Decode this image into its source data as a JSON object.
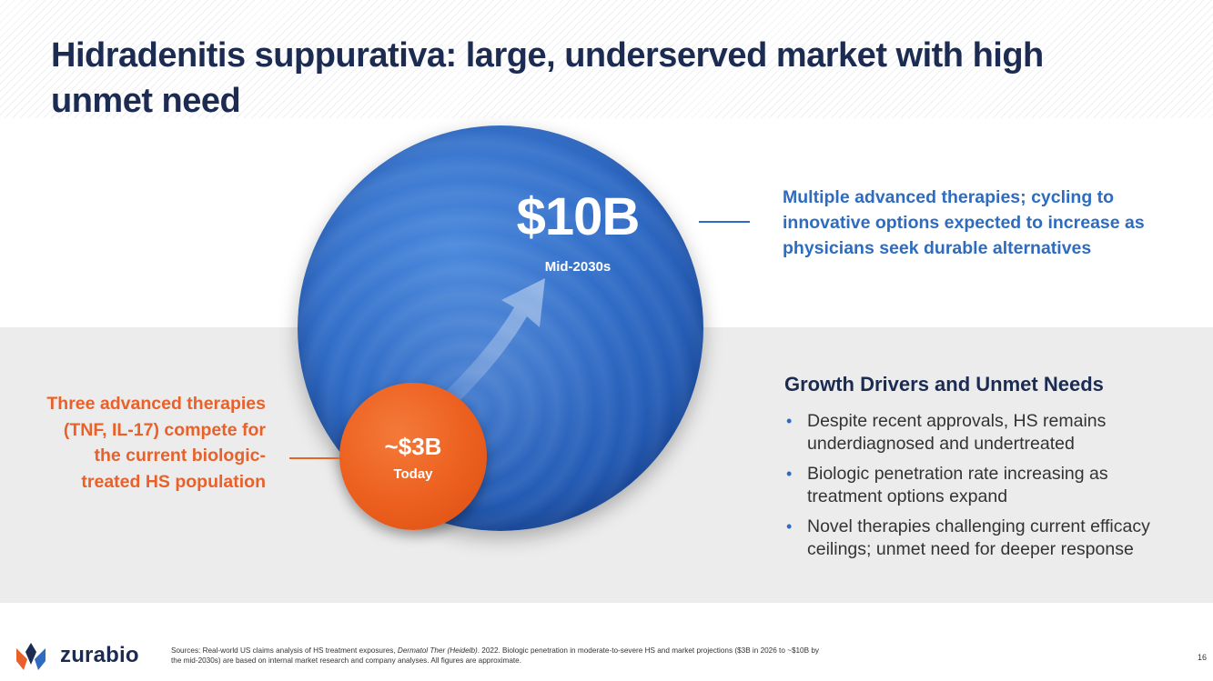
{
  "slide": {
    "title": "Hidradenitis suppurativa: large, underserved market with high unmet need"
  },
  "market": {
    "future_value": "$10B",
    "future_label": "Mid-2030s",
    "current_value": "~$3B",
    "current_label": "Today",
    "future_callout": "Multiple advanced therapies; cycling to innovative options expected to increase as physicians seek durable alternatives",
    "current_callout": "Three advanced therapies (TNF, IL-17) compete for the current biologic-treated HS population"
  },
  "drivers": {
    "heading": "Growth Drivers and Unmet Needs",
    "items": [
      "Despite recent approvals, HS remains underdiagnosed and undertreated",
      "Biologic penetration rate increasing as treatment options expand",
      "Novel therapies challenging current efficacy ceilings; unmet need for deeper response"
    ],
    "bullet_symbol": "•"
  },
  "footer": {
    "logo_text": "zurabio",
    "sources_prefix": "Sources: Real-world US claims analysis of HS treatment exposures, ",
    "sources_journal": "Dermatol Ther (Heidelb)",
    "sources_suffix": ". 2022. Biologic penetration in moderate-to-severe HS and market projections ($3B in 2026 to ~$10B by the mid-2030s) are based on internal market research and company analyses. All figures are approximate.",
    "page_number": "16"
  },
  "colors": {
    "navy": "#1c2b52",
    "blue": "#2d6cc0",
    "orange": "#e8612a",
    "band_grey": "#ececec"
  }
}
